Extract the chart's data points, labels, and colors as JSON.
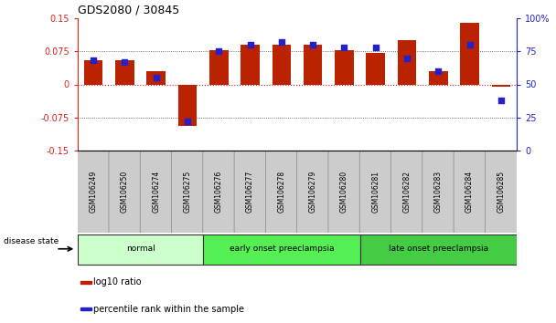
{
  "title": "GDS2080 / 30845",
  "samples": [
    "GSM106249",
    "GSM106250",
    "GSM106274",
    "GSM106275",
    "GSM106276",
    "GSM106277",
    "GSM106278",
    "GSM106279",
    "GSM106280",
    "GSM106281",
    "GSM106282",
    "GSM106283",
    "GSM106284",
    "GSM106285"
  ],
  "log10_ratio": [
    0.055,
    0.055,
    0.03,
    -0.095,
    0.077,
    0.09,
    0.09,
    0.09,
    0.077,
    0.072,
    0.1,
    0.03,
    0.14,
    -0.005
  ],
  "percentile_rank": [
    68,
    67,
    55,
    22,
    75,
    80,
    82,
    80,
    78,
    78,
    70,
    60,
    80,
    38
  ],
  "ylim_left": [
    -0.15,
    0.15
  ],
  "ylim_right": [
    0,
    100
  ],
  "yticks_left": [
    -0.15,
    -0.075,
    0,
    0.075,
    0.15
  ],
  "yticks_right": [
    0,
    25,
    50,
    75,
    100
  ],
  "ytick_labels_left": [
    "-0.15",
    "-0.075",
    "0",
    "0.075",
    "0.15"
  ],
  "ytick_labels_right": [
    "0",
    "25",
    "50",
    "75",
    "100%"
  ],
  "bar_color": "#BB2200",
  "dot_color": "#2222CC",
  "groups": [
    {
      "label": "normal",
      "start": 0,
      "end": 3,
      "color": "#CCFFCC"
    },
    {
      "label": "early onset preeclampsia",
      "start": 4,
      "end": 8,
      "color": "#55EE55"
    },
    {
      "label": "late onset preeclampsia",
      "start": 9,
      "end": 13,
      "color": "#44CC44"
    }
  ],
  "disease_label": "disease state",
  "legend_items": [
    {
      "label": "log10 ratio",
      "color": "#BB2200"
    },
    {
      "label": "percentile rank within the sample",
      "color": "#2222CC"
    }
  ],
  "hline_color": "#DD2222",
  "grid_color": "#444444",
  "tick_bg_color": "#CCCCCC",
  "background_color": "#FFFFFF",
  "bar_width": 0.6
}
